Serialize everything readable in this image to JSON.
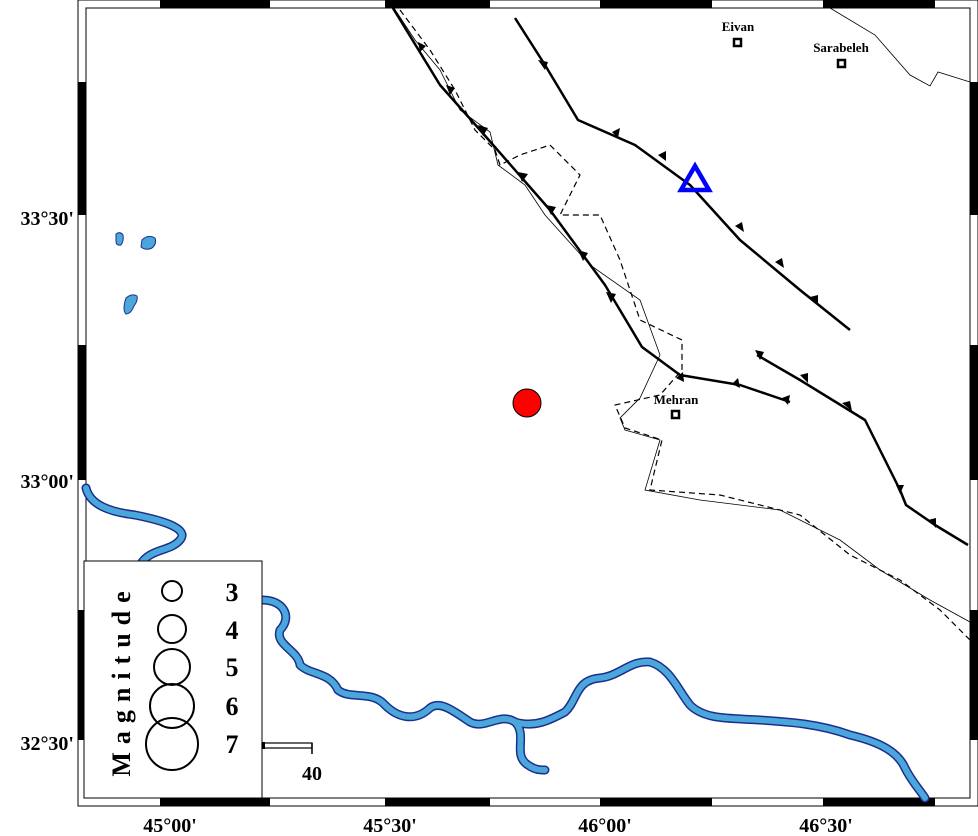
{
  "map": {
    "lat_labels": [
      "33°30'",
      "33°00'",
      "32°30'"
    ],
    "lon_labels": [
      "45°00'",
      "45°30'",
      "46°00'",
      "46°30'"
    ],
    "cities": [
      {
        "name": "Eivan"
      },
      {
        "name": "Sarabeleh"
      },
      {
        "name": "Mehran"
      }
    ],
    "symbols": {
      "epicenter": {
        "shape": "circle",
        "color": "#ff0000"
      },
      "station": {
        "shape": "triangle",
        "color": "#0000ff"
      }
    },
    "colors": {
      "river": "#4ba6dc",
      "river_outline": "#1b2f8a",
      "fault": "#000000"
    }
  },
  "legend": {
    "title": "Magnitude",
    "magnitudes": [
      "3",
      "4",
      "5",
      "6",
      "7"
    ]
  },
  "scale_bar": {
    "label": "40"
  }
}
